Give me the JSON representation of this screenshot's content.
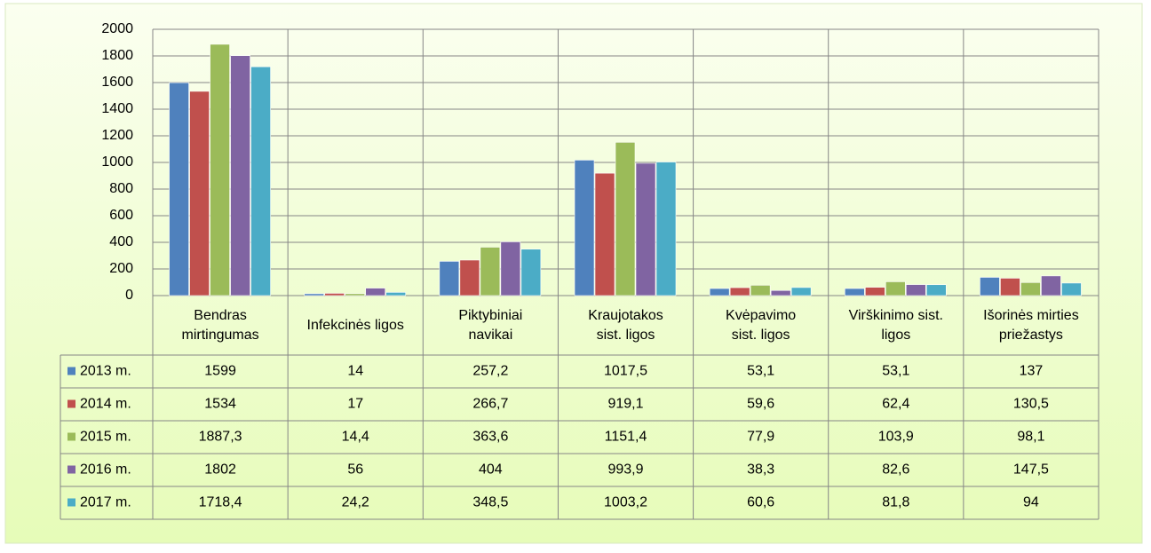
{
  "chart_data": {
    "type": "bar",
    "categories": [
      "Bendras\nmirtingumas",
      "Infekcinės ligos",
      "Piktybiniai\nnavikai",
      "Kraujotakos\nsist. ligos",
      "Kvėpavimo\nsist. ligos",
      "Virškinimo sist.\nligos",
      "Išorinės mirties\npriežastys"
    ],
    "series": [
      {
        "name": "2013 m.",
        "color": "#4f81bd",
        "values": [
          1599,
          14,
          257.2,
          1017.5,
          53.1,
          53.1,
          137
        ],
        "value_labels": [
          "1599",
          "14",
          "257,2",
          "1017,5",
          "53,1",
          "53,1",
          "137"
        ]
      },
      {
        "name": "2014 m.",
        "color": "#c0504d",
        "values": [
          1534,
          17,
          266.7,
          919.1,
          59.6,
          62.4,
          130.5
        ],
        "value_labels": [
          "1534",
          "17",
          "266,7",
          "919,1",
          "59,6",
          "62,4",
          "130,5"
        ]
      },
      {
        "name": "2015 m.",
        "color": "#9bbb59",
        "values": [
          1887.3,
          14.4,
          363.6,
          1151.4,
          77.9,
          103.9,
          98.1
        ],
        "value_labels": [
          "1887,3",
          "14,4",
          "363,6",
          "1151,4",
          "77,9",
          "103,9",
          "98,1"
        ]
      },
      {
        "name": "2016 m.",
        "color": "#8064a2",
        "values": [
          1802,
          56,
          404,
          993.9,
          38.3,
          82.6,
          147.5
        ],
        "value_labels": [
          "1802",
          "56",
          "404",
          "993,9",
          "38,3",
          "82,6",
          "147,5"
        ]
      },
      {
        "name": "2017 m.",
        "color": "#4bacc6",
        "values": [
          1718.4,
          24.2,
          348.5,
          1003.2,
          60.6,
          81.8,
          94
        ],
        "value_labels": [
          "1718,4",
          "24,2",
          "348,5",
          "1003,2",
          "60,6",
          "81,8",
          "94"
        ]
      }
    ],
    "ylim": [
      0,
      2000
    ],
    "yticks": [
      0,
      200,
      400,
      600,
      800,
      1000,
      1200,
      1400,
      1600,
      1800,
      2000
    ],
    "grid": true
  }
}
